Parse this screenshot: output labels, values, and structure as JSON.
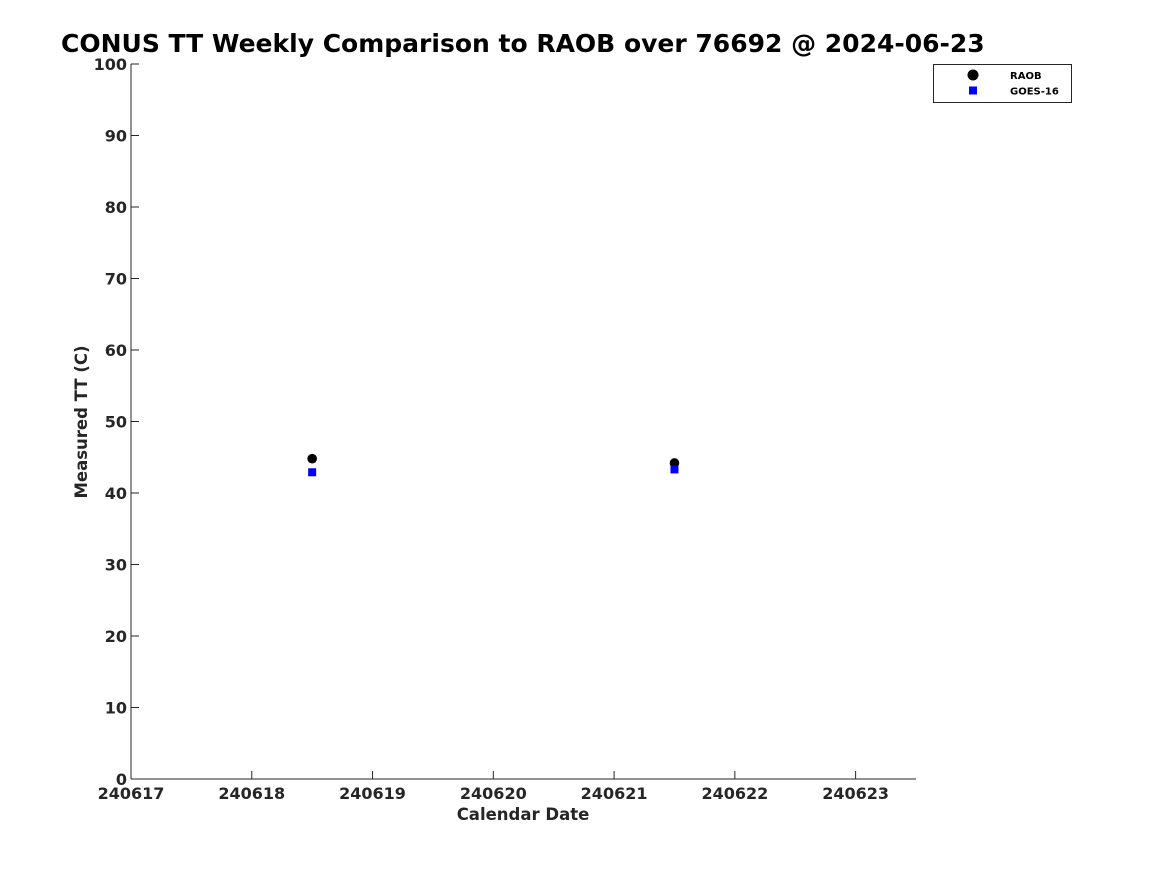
{
  "chart_data": {
    "type": "scatter",
    "title": "CONUS TT Weekly Comparison to RAOB over 76692 @ 2024-06-23",
    "xlabel": "Calendar Date",
    "ylabel": "Measured TT (C)",
    "xlim": [
      "2024-06-17",
      "2024-06-23 12:00"
    ],
    "ylim": [
      0,
      100
    ],
    "x_ticks": [
      {
        "value": "2024-06-17",
        "label": "240617"
      },
      {
        "value": "2024-06-18",
        "label": "240618"
      },
      {
        "value": "2024-06-19",
        "label": "240619"
      },
      {
        "value": "2024-06-20",
        "label": "240620"
      },
      {
        "value": "2024-06-21",
        "label": "240621"
      },
      {
        "value": "2024-06-22",
        "label": "240622"
      },
      {
        "value": "2024-06-23",
        "label": "240623"
      }
    ],
    "y_ticks": [
      0,
      10,
      20,
      30,
      40,
      50,
      60,
      70,
      80,
      90,
      100
    ],
    "grid": false,
    "legend_position": "top-right",
    "series": [
      {
        "name": "RAOB",
        "marker": "circle",
        "color": "#000000",
        "points": [
          {
            "x": "2024-06-18 12:00",
            "y": 44.8
          },
          {
            "x": "2024-06-21 12:00",
            "y": 44.2
          }
        ]
      },
      {
        "name": "GOES-16",
        "marker": "square",
        "color": "#0000ff",
        "points": [
          {
            "x": "2024-06-18 12:00",
            "y": 42.9
          },
          {
            "x": "2024-06-21 12:00",
            "y": 43.3
          }
        ]
      }
    ]
  }
}
